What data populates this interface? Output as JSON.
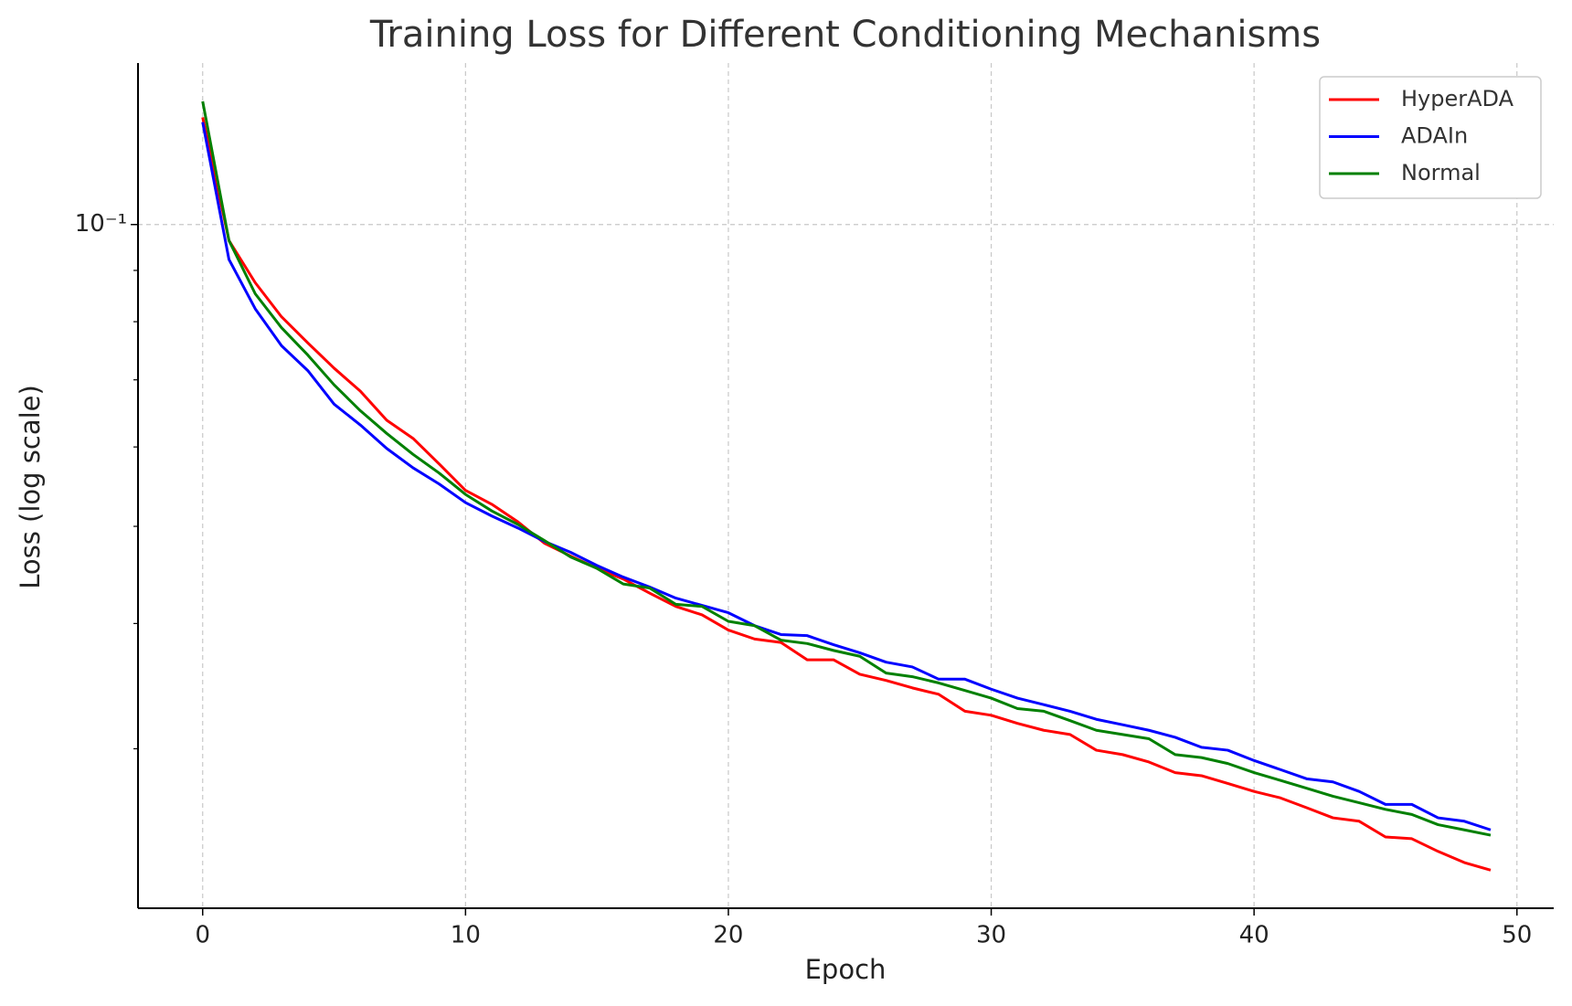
{
  "chart_data": {
    "type": "line",
    "title": "Training Loss for Different Conditioning Mechanisms",
    "x_label": "Epoch",
    "y_label": "Loss (log scale)",
    "x": [
      0,
      1,
      2,
      3,
      4,
      5,
      6,
      7,
      8,
      9,
      10,
      11,
      12,
      13,
      14,
      15,
      16,
      17,
      18,
      19,
      20,
      21,
      22,
      23,
      24,
      25,
      26,
      27,
      28,
      29,
      30,
      31,
      32,
      33,
      34,
      35,
      36,
      37,
      38,
      39,
      40,
      41,
      42,
      43,
      44,
      45,
      46,
      47,
      48,
      49
    ],
    "series": [
      {
        "name": "HyperADA",
        "color": "#ff0000",
        "values": [
          0.1279,
          0.0964,
          0.0875,
          0.0809,
          0.0762,
          0.0719,
          0.0682,
          0.0638,
          0.0612,
          0.0577,
          0.0543,
          0.0526,
          0.0505,
          0.0481,
          0.0467,
          0.0454,
          0.0443,
          0.0429,
          0.0416,
          0.0408,
          0.0394,
          0.0386,
          0.0383,
          0.0368,
          0.0368,
          0.0356,
          0.0351,
          0.0345,
          0.034,
          0.0327,
          0.0324,
          0.0318,
          0.0313,
          0.031,
          0.0299,
          0.0296,
          0.0291,
          0.0284,
          0.0282,
          0.0277,
          0.0272,
          0.0268,
          0.0262,
          0.0256,
          0.0254,
          0.0245,
          0.0244,
          0.0237,
          0.0231,
          0.0227
        ]
      },
      {
        "name": "ADAIn",
        "color": "#0000ff",
        "values": [
          0.1265,
          0.0923,
          0.0824,
          0.0757,
          0.0715,
          0.0662,
          0.0631,
          0.0598,
          0.0572,
          0.0551,
          0.0528,
          0.0512,
          0.0498,
          0.0483,
          0.0471,
          0.0457,
          0.0445,
          0.0435,
          0.0424,
          0.0417,
          0.041,
          0.0398,
          0.039,
          0.0389,
          0.0381,
          0.0374,
          0.0366,
          0.0362,
          0.0352,
          0.0352,
          0.0344,
          0.0337,
          0.0332,
          0.0327,
          0.0321,
          0.0317,
          0.0313,
          0.0308,
          0.0301,
          0.0299,
          0.0292,
          0.0286,
          0.028,
          0.0278,
          0.0272,
          0.0264,
          0.0264,
          0.0256,
          0.0254,
          0.0249
        ]
      },
      {
        "name": "Normal",
        "color": "#008000",
        "values": [
          0.1327,
          0.0964,
          0.0853,
          0.0789,
          0.0741,
          0.0692,
          0.0652,
          0.0619,
          0.059,
          0.0565,
          0.0538,
          0.0518,
          0.0502,
          0.0484,
          0.0466,
          0.0454,
          0.0438,
          0.0434,
          0.0418,
          0.0416,
          0.0402,
          0.0398,
          0.0385,
          0.0382,
          0.0376,
          0.0371,
          0.0357,
          0.0354,
          0.0349,
          0.0343,
          0.0337,
          0.0329,
          0.0327,
          0.032,
          0.0313,
          0.031,
          0.0307,
          0.0296,
          0.0294,
          0.029,
          0.0284,
          0.0279,
          0.0274,
          0.0269,
          0.0265,
          0.0261,
          0.0258,
          0.0252,
          0.0249,
          0.0246
        ]
      }
    ],
    "xlim": [
      -2.46,
      51.4
    ],
    "xticks": [
      0,
      10,
      20,
      30,
      40,
      50
    ],
    "ylim": [
      0.0208,
      0.1449
    ],
    "yscale": "log",
    "yticks": [
      {
        "value": 0.1,
        "label": "10⁻¹"
      }
    ],
    "yminorticks": [
      0.03,
      0.04,
      0.05,
      0.06,
      0.07,
      0.08,
      0.09
    ],
    "grid": true,
    "legend": "upper right"
  }
}
